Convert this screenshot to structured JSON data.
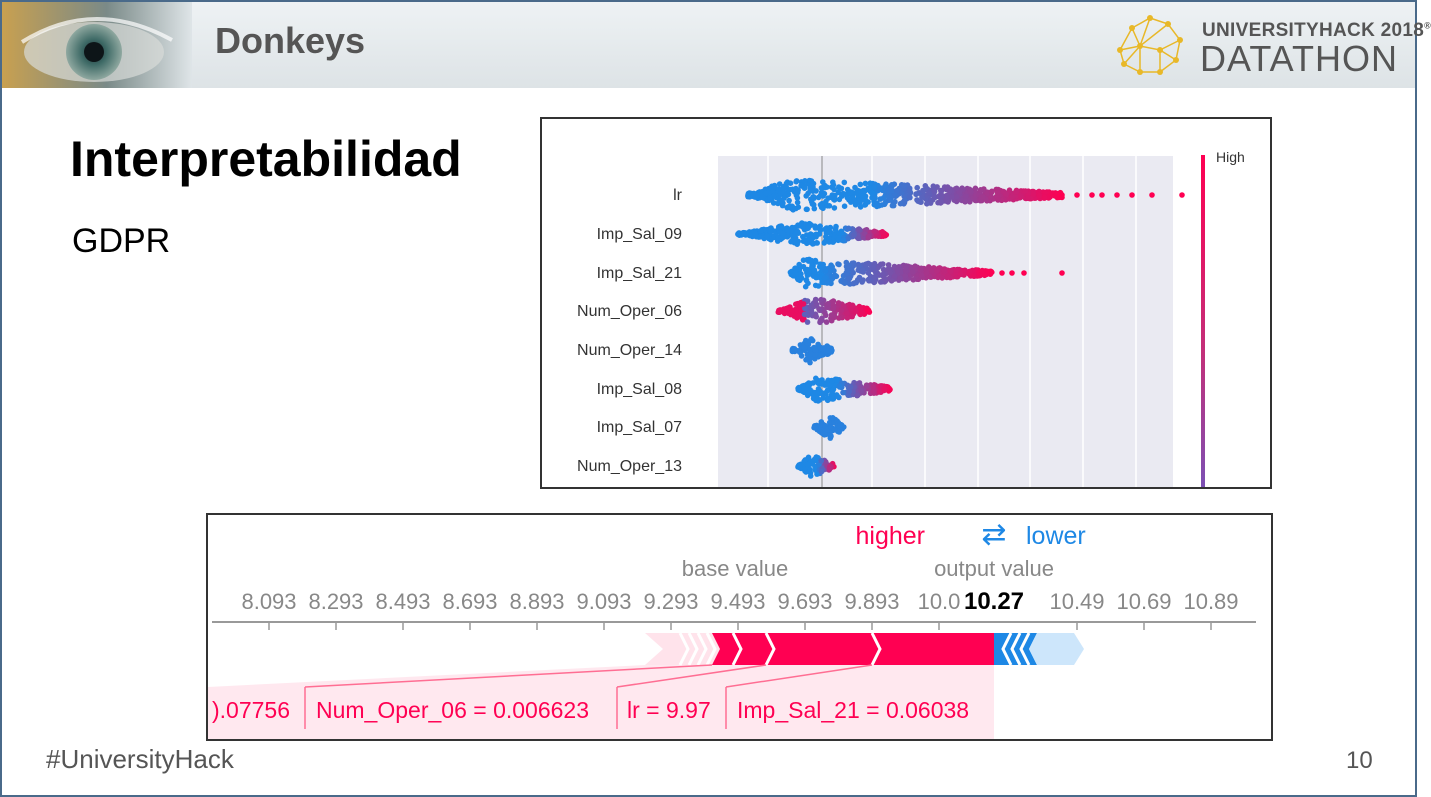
{
  "header": {
    "team": "Donkeys",
    "logo_top": "UNIVERSITYHACK 2018",
    "logo_mark": "®",
    "logo_bottom": "DATATHON"
  },
  "slide": {
    "title": "Interpretabilidad",
    "subtitle": "GDPR",
    "footer_tag": "#UniversityHack",
    "page_number": "10"
  },
  "colors": {
    "high": "#ff0052",
    "low": "#1e88e5",
    "header_text": "#555555"
  },
  "summary_plot": {
    "features": [
      "lr",
      "Imp_Sal_09",
      "Imp_Sal_21",
      "Num_Oper_06",
      "Num_Oper_14",
      "Imp_Sal_08",
      "Imp_Sal_07",
      "Num_Oper_13"
    ],
    "colorbar_high": "High"
  },
  "force_plot": {
    "legend_higher": "higher",
    "legend_arrow": "⇄",
    "legend_lower": "lower",
    "base_label": "base value",
    "output_label": "output value",
    "output_value": "10.27",
    "ticks": [
      "8.093",
      "8.293",
      "8.493",
      "8.693",
      "8.893",
      "9.093",
      "9.293",
      "9.493",
      "9.693",
      "9.893",
      "10.0",
      "10.49",
      "10.69",
      "10.89"
    ],
    "features": [
      {
        "label": ").07756"
      },
      {
        "label": "Num_Oper_06 = 0.006623"
      },
      {
        "label": "lr = 9.97"
      },
      {
        "label": "Imp_Sal_21 = 0.06038"
      }
    ]
  }
}
